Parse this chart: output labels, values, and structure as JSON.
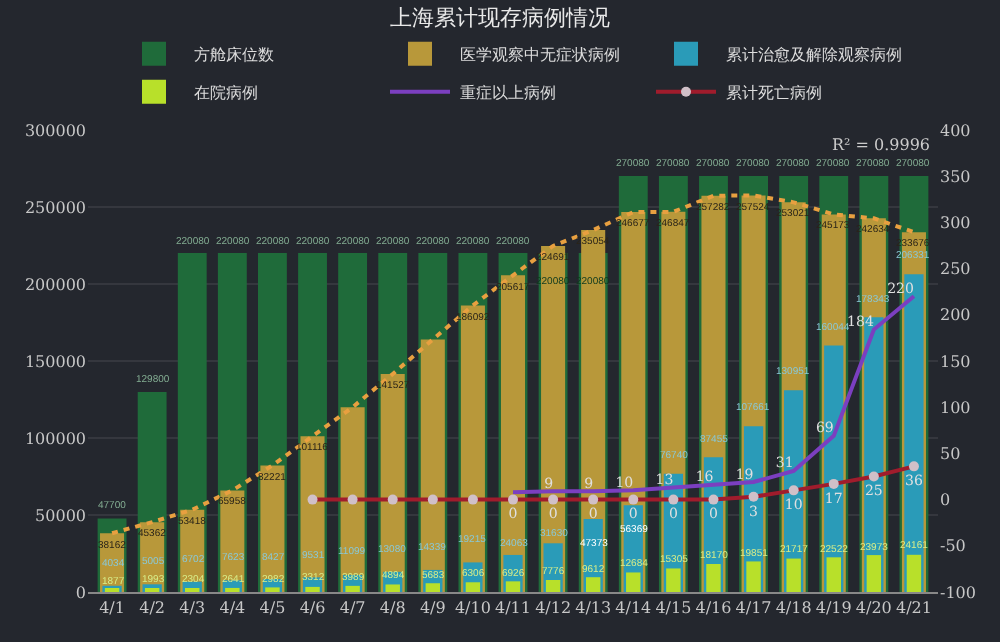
{
  "chart_data": {
    "type": "bar",
    "title": "上海累计现存病例情况",
    "categories": [
      "4/1",
      "4/2",
      "4/3",
      "4/4",
      "4/5",
      "4/6",
      "4/7",
      "4/8",
      "4/9",
      "4/10",
      "4/11",
      "4/12",
      "4/13",
      "4/14",
      "4/15",
      "4/16",
      "4/17",
      "4/18",
      "4/19",
      "4/20",
      "4/21"
    ],
    "series": [
      {
        "name": "方舱床位数",
        "color": "#1f6b3a",
        "values": [
          47700,
          129800,
          220080,
          220080,
          220080,
          220080,
          220080,
          220080,
          220080,
          220080,
          220080,
          220080,
          220080,
          270080,
          270080,
          270080,
          270080,
          270080,
          270080,
          270080,
          270080
        ],
        "value_labels": [
          "47700",
          "129800",
          "220080",
          "220080",
          "220080",
          "220080",
          "220080",
          "220080",
          "220080",
          "220080",
          "220080",
          "220080",
          "220080",
          "270080",
          "270080",
          "270080",
          "270080",
          "270080",
          "270080",
          "270080",
          "270080"
        ]
      },
      {
        "name": "医学观察中无症状病例",
        "color": "#b8983a",
        "values": [
          38162,
          45362,
          53418,
          65958,
          82221,
          101116,
          120000,
          141527,
          164000,
          186092,
          205617,
          224691,
          235054,
          246677,
          246847,
          257282,
          257524,
          253021,
          245173,
          242634,
          233676
        ],
        "value_labels": [
          "38162",
          "45362",
          "53418",
          "65958",
          "82221",
          "101116",
          null,
          "141527",
          null,
          "186092",
          "205617",
          "224691",
          "235054",
          "246677",
          "246847",
          "257282",
          "257524",
          "253021",
          "245173",
          "242634",
          "233676"
        ]
      },
      {
        "name": "累计治愈及解除观察病例",
        "color": "#2a9bb8",
        "values": [
          4034,
          5005,
          6702,
          7623,
          8427,
          9531,
          11099,
          13080,
          14339,
          19215,
          24063,
          31630,
          47373,
          56369,
          76740,
          87455,
          107661,
          130951,
          160044,
          178343,
          206331
        ],
        "value_labels": [
          "4034",
          "5005",
          "6702",
          "7623",
          "8427",
          "9531",
          "11099",
          "13080",
          "14339",
          "19215",
          "24063",
          "31630",
          "47373",
          "56369",
          "76740",
          "87455",
          "107661",
          "130951",
          "160044",
          "178343",
          "206331"
        ]
      },
      {
        "name": "在院病例",
        "color": "#b8e02a",
        "values": [
          1877,
          1993,
          2304,
          2641,
          2982,
          3312,
          3989,
          4894,
          5683,
          6306,
          6926,
          7776,
          9612,
          12684,
          15305,
          18170,
          19851,
          21717,
          22522,
          23973,
          24161
        ],
        "value_labels": [
          "1877",
          "1993",
          "2304",
          "2641",
          "2982",
          "3312",
          "3989",
          "4894",
          "5683",
          "6306",
          "6926",
          "7776",
          "9612",
          "12684",
          "15305",
          "18170",
          "19851",
          "21717",
          "22522",
          "23973",
          "24161"
        ]
      },
      {
        "type": "line",
        "color": "#e8a040",
        "line_style": "dotted",
        "marker": "none",
        "values": [
          38162,
          45362,
          53418,
          65958,
          82221,
          101116,
          120000,
          141527,
          164000,
          186092,
          205617,
          224691,
          235054,
          246677,
          246847,
          257282,
          257524,
          253021,
          245173,
          242634,
          233676
        ]
      },
      {
        "name": "重症以上病例",
        "type": "line",
        "axis": "y2",
        "color": "#7b3fc0",
        "line_style": "solid",
        "marker": "none",
        "values": [
          null,
          null,
          null,
          null,
          null,
          null,
          null,
          null,
          null,
          null,
          8,
          9,
          9,
          10,
          13,
          16,
          19,
          31,
          69,
          184,
          220
        ],
        "value_labels": [
          null,
          null,
          null,
          null,
          null,
          null,
          null,
          null,
          null,
          null,
          null,
          "9",
          "9",
          "10",
          "13",
          "16",
          "19",
          "31",
          "69",
          "184",
          "220"
        ]
      },
      {
        "name": "累计死亡病例",
        "type": "line",
        "axis": "y2",
        "color": "#a01c2c",
        "line_style": "solid",
        "marker": "circle",
        "values": [
          null,
          null,
          null,
          null,
          null,
          0,
          0,
          0,
          0,
          0,
          0,
          0,
          0,
          0,
          0,
          0,
          3,
          10,
          17,
          25,
          36
        ],
        "value_labels": [
          null,
          null,
          null,
          null,
          null,
          null,
          null,
          null,
          null,
          null,
          "0",
          "0",
          "0",
          "0",
          "0",
          "0",
          "3",
          "10",
          "17",
          "25",
          "36"
        ]
      }
    ],
    "ylim": [
      0,
      300000
    ],
    "yticks": [
      0,
      50000,
      100000,
      150000,
      200000,
      250000,
      300000
    ],
    "y2lim": [
      -100,
      400
    ],
    "y2ticks": [
      -100,
      -50,
      0,
      50,
      100,
      150,
      200,
      250,
      300,
      350,
      400
    ],
    "grid": "y",
    "legend": "top",
    "annotations": [
      "R² = 0.9996"
    ]
  }
}
